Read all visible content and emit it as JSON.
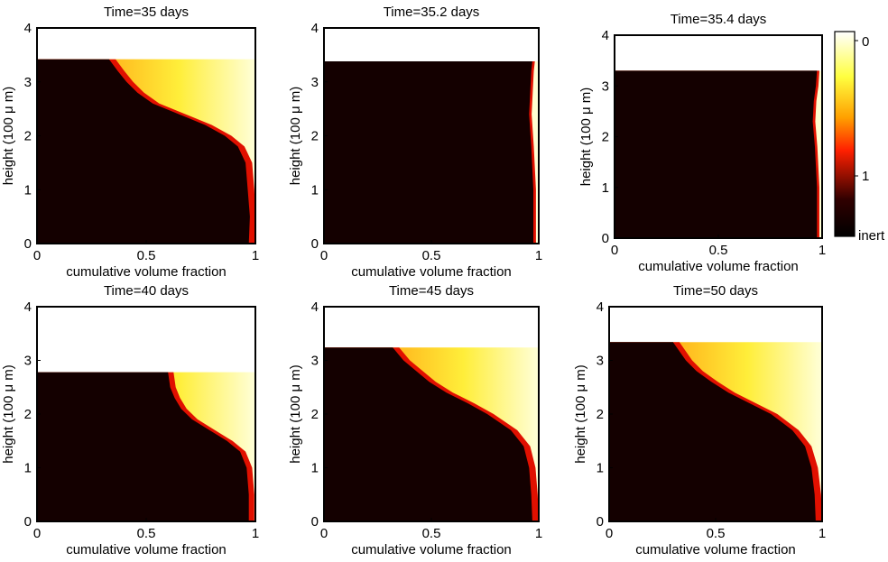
{
  "chart_data": [
    {
      "type": "heatmap",
      "title": "Time=35 days",
      "xlabel": "cumulative volume fraction",
      "ylabel": "height (100 μ m)",
      "xlim": [
        0,
        1
      ],
      "ylim": [
        0,
        4
      ],
      "xticks": [
        "0",
        "0.5",
        "1"
      ],
      "yticks": [
        "0",
        "1",
        "2",
        "3",
        "4"
      ],
      "surface_height": 3.42,
      "black_boundary": [
        [
          0,
          0.97
        ],
        [
          0.5,
          0.975
        ],
        [
          1.0,
          0.965
        ],
        [
          1.5,
          0.955
        ],
        [
          1.8,
          0.92
        ],
        [
          2.0,
          0.86
        ],
        [
          2.2,
          0.77
        ],
        [
          2.4,
          0.65
        ],
        [
          2.6,
          0.53
        ],
        [
          2.8,
          0.46
        ],
        [
          3.0,
          0.41
        ],
        [
          3.2,
          0.37
        ],
        [
          3.42,
          0.33
        ]
      ],
      "red_band": 0.03
    },
    {
      "type": "heatmap",
      "title": "Time=35.2 days",
      "xlabel": "cumulative volume fraction",
      "ylabel": "height (100 μ m)",
      "xlim": [
        0,
        1
      ],
      "ylim": [
        0,
        4
      ],
      "xticks": [
        "0",
        "0.5",
        "1"
      ],
      "yticks": [
        "0",
        "1",
        "2",
        "3",
        "4"
      ],
      "surface_height": 3.38,
      "black_boundary": [
        [
          0,
          0.975
        ],
        [
          1.0,
          0.975
        ],
        [
          1.8,
          0.965
        ],
        [
          2.4,
          0.955
        ],
        [
          2.8,
          0.96
        ],
        [
          3.2,
          0.965
        ],
        [
          3.38,
          0.97
        ]
      ],
      "red_band": 0.012
    },
    {
      "type": "heatmap",
      "title": "Time=35.4 days",
      "xlabel": "cumulative volume fraction",
      "ylabel": "height (100 μ m)",
      "xlim": [
        0,
        1
      ],
      "ylim": [
        0,
        4
      ],
      "xticks": [
        "0",
        "0.5",
        "1"
      ],
      "yticks": [
        "0",
        "1",
        "2",
        "3",
        "4"
      ],
      "surface_height": 3.3,
      "black_boundary": [
        [
          0,
          0.975
        ],
        [
          1.0,
          0.975
        ],
        [
          1.8,
          0.965
        ],
        [
          2.3,
          0.955
        ],
        [
          2.7,
          0.96
        ],
        [
          3.0,
          0.97
        ],
        [
          3.3,
          0.975
        ]
      ],
      "red_band": 0.012
    },
    {
      "type": "heatmap",
      "title": "Time=40 days",
      "xlabel": "cumulative volume fraction",
      "ylabel": "height (100 μ m)",
      "xlim": [
        0,
        1
      ],
      "ylim": [
        0,
        4
      ],
      "xticks": [
        "0",
        "0.5",
        "1"
      ],
      "yticks": [
        "0",
        "1",
        "2",
        "3",
        "4"
      ],
      "surface_height": 2.78,
      "black_boundary": [
        [
          0,
          0.97
        ],
        [
          0.5,
          0.97
        ],
        [
          1.0,
          0.96
        ],
        [
          1.3,
          0.93
        ],
        [
          1.5,
          0.87
        ],
        [
          1.7,
          0.79
        ],
        [
          1.9,
          0.71
        ],
        [
          2.1,
          0.66
        ],
        [
          2.3,
          0.63
        ],
        [
          2.5,
          0.61
        ],
        [
          2.78,
          0.6
        ]
      ],
      "red_band": 0.025
    },
    {
      "type": "heatmap",
      "title": "Time=45 days",
      "xlabel": "cumulative volume fraction",
      "ylabel": "height (100 μ m)",
      "xlim": [
        0,
        1
      ],
      "ylim": [
        0,
        4
      ],
      "xticks": [
        "0",
        "0.5",
        "1"
      ],
      "yticks": [
        "0",
        "1",
        "2",
        "3",
        "4"
      ],
      "surface_height": 3.24,
      "black_boundary": [
        [
          0,
          0.97
        ],
        [
          0.5,
          0.965
        ],
        [
          1.0,
          0.955
        ],
        [
          1.4,
          0.93
        ],
        [
          1.7,
          0.87
        ],
        [
          2.0,
          0.76
        ],
        [
          2.2,
          0.67
        ],
        [
          2.4,
          0.57
        ],
        [
          2.6,
          0.49
        ],
        [
          2.8,
          0.43
        ],
        [
          3.0,
          0.37
        ],
        [
          3.24,
          0.32
        ]
      ],
      "red_band": 0.03
    },
    {
      "type": "heatmap",
      "title": "Time=50 days",
      "xlabel": "cumulative volume fraction",
      "ylabel": "height (100 μ m)",
      "xlim": [
        0,
        1
      ],
      "ylim": [
        0,
        4
      ],
      "xticks": [
        "0",
        "0.5",
        "1"
      ],
      "yticks": [
        "0",
        "1",
        "2",
        "3",
        "4"
      ],
      "surface_height": 3.34,
      "black_boundary": [
        [
          0,
          0.97
        ],
        [
          0.5,
          0.965
        ],
        [
          1.0,
          0.95
        ],
        [
          1.4,
          0.92
        ],
        [
          1.7,
          0.86
        ],
        [
          2.0,
          0.76
        ],
        [
          2.2,
          0.66
        ],
        [
          2.4,
          0.56
        ],
        [
          2.6,
          0.48
        ],
        [
          2.8,
          0.41
        ],
        [
          3.0,
          0.36
        ],
        [
          3.34,
          0.3
        ]
      ],
      "red_band": 0.03
    }
  ],
  "colorbar": {
    "labels": [
      "0",
      "1",
      "inert"
    ],
    "colors": [
      "#ffffff",
      "#ffff40",
      "#ffa000",
      "#ff2000",
      "#300000",
      "#000000"
    ]
  }
}
